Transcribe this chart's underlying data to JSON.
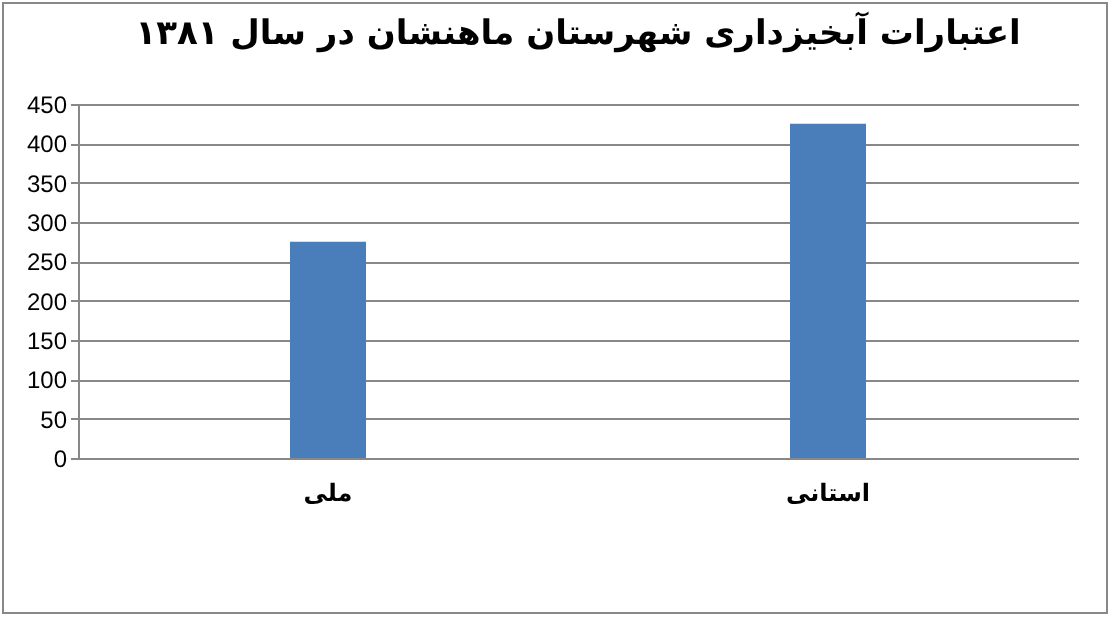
{
  "chart_data": {
    "type": "bar",
    "title": "اعتبارات آبخیزداری شهرستان ماهنشان در سال ۱۳۸۱",
    "categories": [
      "ملی",
      "استانی"
    ],
    "values": [
      275,
      425
    ],
    "color": "#4a7ebb",
    "ylim": [
      0,
      450
    ],
    "yticks": [
      0,
      50,
      100,
      150,
      200,
      250,
      300,
      350,
      400,
      450
    ],
    "grid": "y"
  }
}
